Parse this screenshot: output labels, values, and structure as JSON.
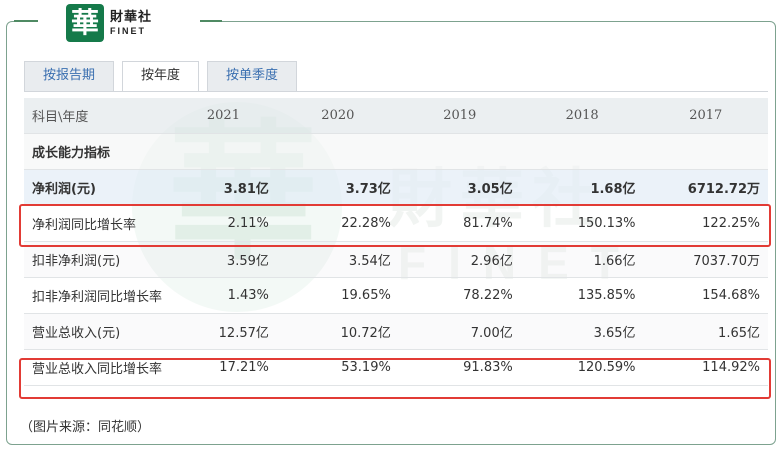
{
  "logo": {
    "mark": "華",
    "name_cn": "財華社",
    "name_en": "FINET"
  },
  "watermark": {
    "glyph": "華",
    "cn": "財華社",
    "en": "FINET"
  },
  "tabs": [
    {
      "label": "按报告期",
      "active": false
    },
    {
      "label": "按年度",
      "active": true
    },
    {
      "label": "按单季度",
      "active": false
    }
  ],
  "table": {
    "header": {
      "label": "科目\\年度",
      "years": [
        "2021",
        "2020",
        "2019",
        "2018",
        "2017"
      ]
    },
    "section": "成长能力指标",
    "rows": [
      {
        "label": "净利润(元)",
        "values": [
          "3.81亿",
          "3.73亿",
          "3.05亿",
          "1.68亿",
          "6712.72万"
        ]
      },
      {
        "label": "净利润同比增长率",
        "values": [
          "2.11%",
          "22.28%",
          "81.74%",
          "150.13%",
          "122.25%"
        ]
      },
      {
        "label": "扣非净利润(元)",
        "values": [
          "3.59亿",
          "3.54亿",
          "2.96亿",
          "1.66亿",
          "7037.70万"
        ]
      },
      {
        "label": "扣非净利润同比增长率",
        "values": [
          "1.43%",
          "19.65%",
          "78.22%",
          "135.85%",
          "154.68%"
        ]
      },
      {
        "label": "营业总收入(元)",
        "values": [
          "12.57亿",
          "10.72亿",
          "7.00亿",
          "3.65亿",
          "1.65亿"
        ]
      },
      {
        "label": "营业总收入同比增长率",
        "values": [
          "17.21%",
          "53.19%",
          "91.83%",
          "120.59%",
          "114.92%"
        ]
      }
    ]
  },
  "source_note": "（图片来源：同花顺）",
  "colors": {
    "highlight": "#e23b35",
    "brand_green": "#157a4a",
    "tab_link": "#3a6fb0"
  }
}
